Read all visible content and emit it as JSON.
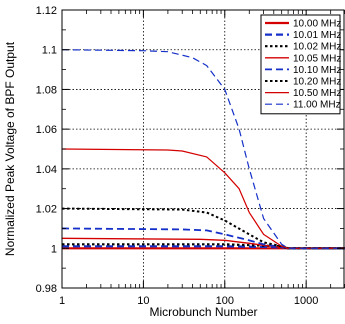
{
  "chart_data": {
    "type": "line",
    "title": "",
    "xlabel": "Microbunch Number",
    "ylabel": "Normalized Peak Voltage of BPF Output",
    "x_scale": "log",
    "xlim": [
      1,
      3000
    ],
    "ylim": [
      0.98,
      1.12
    ],
    "x_ticks": [
      1,
      10,
      100,
      1000
    ],
    "x_tick_labels": [
      "1",
      "10",
      "100",
      "1000"
    ],
    "y_ticks": [
      0.98,
      1.0,
      1.02,
      1.04,
      1.06,
      1.08,
      1.1,
      1.12
    ],
    "y_tick_labels": [
      "0.98",
      "1",
      "1.02",
      "1.04",
      "1.06",
      "1.08",
      "1.1",
      "1.12"
    ],
    "grid": true,
    "legend_position": "top-right",
    "series": [
      {
        "name": "10.00 MHz",
        "color": "#d40000",
        "style": "solid",
        "width": 2.2,
        "x": [
          1,
          3000
        ],
        "y": [
          1.0,
          1.0
        ]
      },
      {
        "name": "10.01 MHz",
        "color": "#1530c8",
        "style": "dashed",
        "width": 2.2,
        "x": [
          1,
          100,
          500,
          600,
          3000
        ],
        "y": [
          1.001,
          1.001,
          1.0005,
          1.0,
          1.0
        ]
      },
      {
        "name": "10.02 MHz",
        "color": "#000000",
        "style": "dotted",
        "width": 2.2,
        "x": [
          1,
          100,
          500,
          600,
          3000
        ],
        "y": [
          1.002,
          1.002,
          1.001,
          1.0,
          1.0
        ]
      },
      {
        "name": "10.05 MHz",
        "color": "#d40000",
        "style": "solid",
        "width": 1.4,
        "x": [
          1,
          50,
          100,
          200,
          300,
          500,
          600,
          3000
        ],
        "y": [
          1.005,
          1.0045,
          1.004,
          1.0025,
          1.0015,
          1.0005,
          1.0,
          1.0
        ]
      },
      {
        "name": "10.10 MHz",
        "color": "#1530c8",
        "style": "dashed",
        "width": 1.8,
        "x": [
          1,
          30,
          60,
          100,
          200,
          300,
          500,
          600,
          3000
        ],
        "y": [
          1.01,
          1.0095,
          1.009,
          1.007,
          1.004,
          1.002,
          1.0005,
          1.0,
          1.0
        ]
      },
      {
        "name": "10.20 MHz",
        "color": "#000000",
        "style": "dotted",
        "width": 2.0,
        "x": [
          1,
          30,
          60,
          100,
          200,
          300,
          500,
          600,
          3000
        ],
        "y": [
          1.02,
          1.0195,
          1.018,
          1.014,
          1.007,
          1.003,
          1.001,
          1.0,
          1.0
        ]
      },
      {
        "name": "10.50 MHz",
        "color": "#d40000",
        "style": "solid",
        "width": 1.2,
        "x": [
          1,
          20,
          30,
          60,
          100,
          150,
          200,
          300,
          500,
          600,
          3000
        ],
        "y": [
          1.05,
          1.0495,
          1.049,
          1.046,
          1.038,
          1.03,
          1.018,
          1.007,
          1.001,
          1.0,
          1.0
        ]
      },
      {
        "name": "11.00 MHz",
        "color": "#1530c8",
        "style": "dashed",
        "width": 1.2,
        "x": [
          1,
          10,
          20,
          40,
          60,
          100,
          150,
          200,
          300,
          500,
          600,
          3000
        ],
        "y": [
          1.1,
          1.0995,
          1.099,
          1.096,
          1.092,
          1.08,
          1.06,
          1.04,
          1.015,
          1.002,
          1.0,
          1.0
        ]
      }
    ]
  }
}
